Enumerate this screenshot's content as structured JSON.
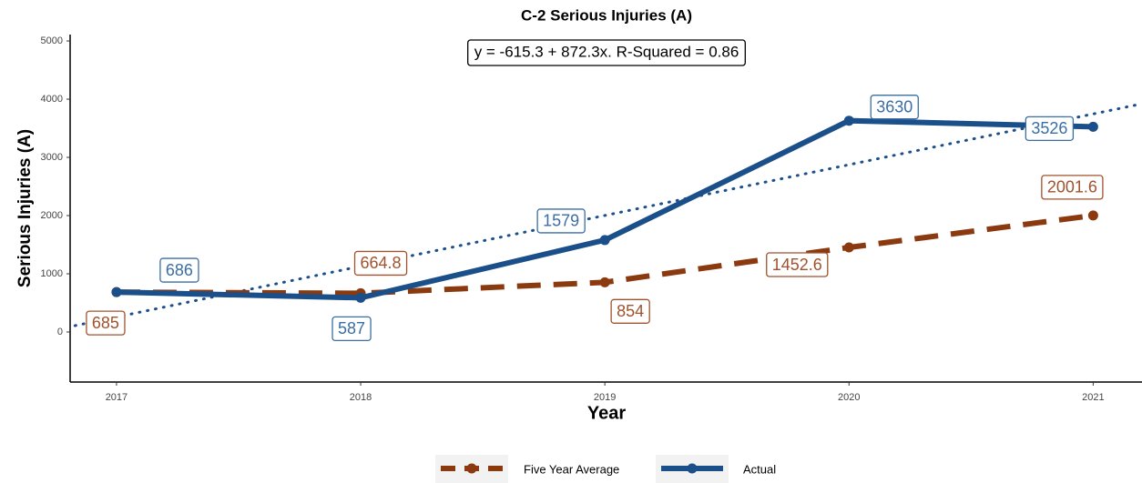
{
  "chart_data": {
    "type": "line",
    "title": "C-2 Serious Injuries (A)",
    "annotation": "y = -615.3 + 872.3x. R-Squared = 0.86",
    "trend": {
      "intercept": -615.3,
      "slope": 872.3,
      "color": "#1b4f8a"
    },
    "x_label": "Year",
    "y_label": "Serious Injuries (A)",
    "x": [
      2017,
      2018,
      2019,
      2020,
      2021
    ],
    "series": [
      {
        "name": "Five Year Average",
        "color": "#8b3a0f",
        "label_color": "#a0522d",
        "dash": true,
        "values": [
          685,
          664.8,
          854,
          1452.6,
          2001.6
        ]
      },
      {
        "name": "Actual",
        "color": "#1b4f8a",
        "label_color": "#3a6ea5",
        "dash": false,
        "values": [
          686,
          587,
          1579,
          3630,
          3526
        ]
      }
    ],
    "xlim": [
      2016.81,
      2021.2
    ],
    "xticks": [
      2017,
      2018,
      2019,
      2020,
      2021
    ],
    "ylim": [
      -860,
      5110
    ],
    "yticks": [
      0,
      1000,
      2000,
      3000,
      4000,
      5000
    ],
    "grid": false,
    "legend": "bottom"
  }
}
